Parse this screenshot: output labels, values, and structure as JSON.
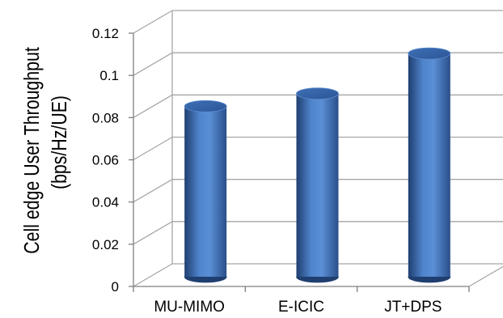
{
  "chart_data": {
    "type": "bar",
    "style": "3d-cylinder",
    "categories": [
      "MU-MIMO",
      "E-ICIC",
      "JT+DPS"
    ],
    "values": [
      0.08,
      0.086,
      0.105
    ],
    "ylabel": "Cell edge User Throughput",
    "ylabel_unit": "(bps/Hz/UE)",
    "xlabel": "",
    "ylim": [
      0,
      0.12
    ],
    "yticks": [
      "0",
      "0.02",
      "0.04",
      "0.06",
      "0.08",
      "0.1",
      "0.12"
    ],
    "grid": true,
    "legend": "none",
    "bar_color": "#4a7ec2",
    "bar_dark": "#23467a",
    "bar_light": "#8fb3e6",
    "grid_color": "#a6a6a6"
  }
}
